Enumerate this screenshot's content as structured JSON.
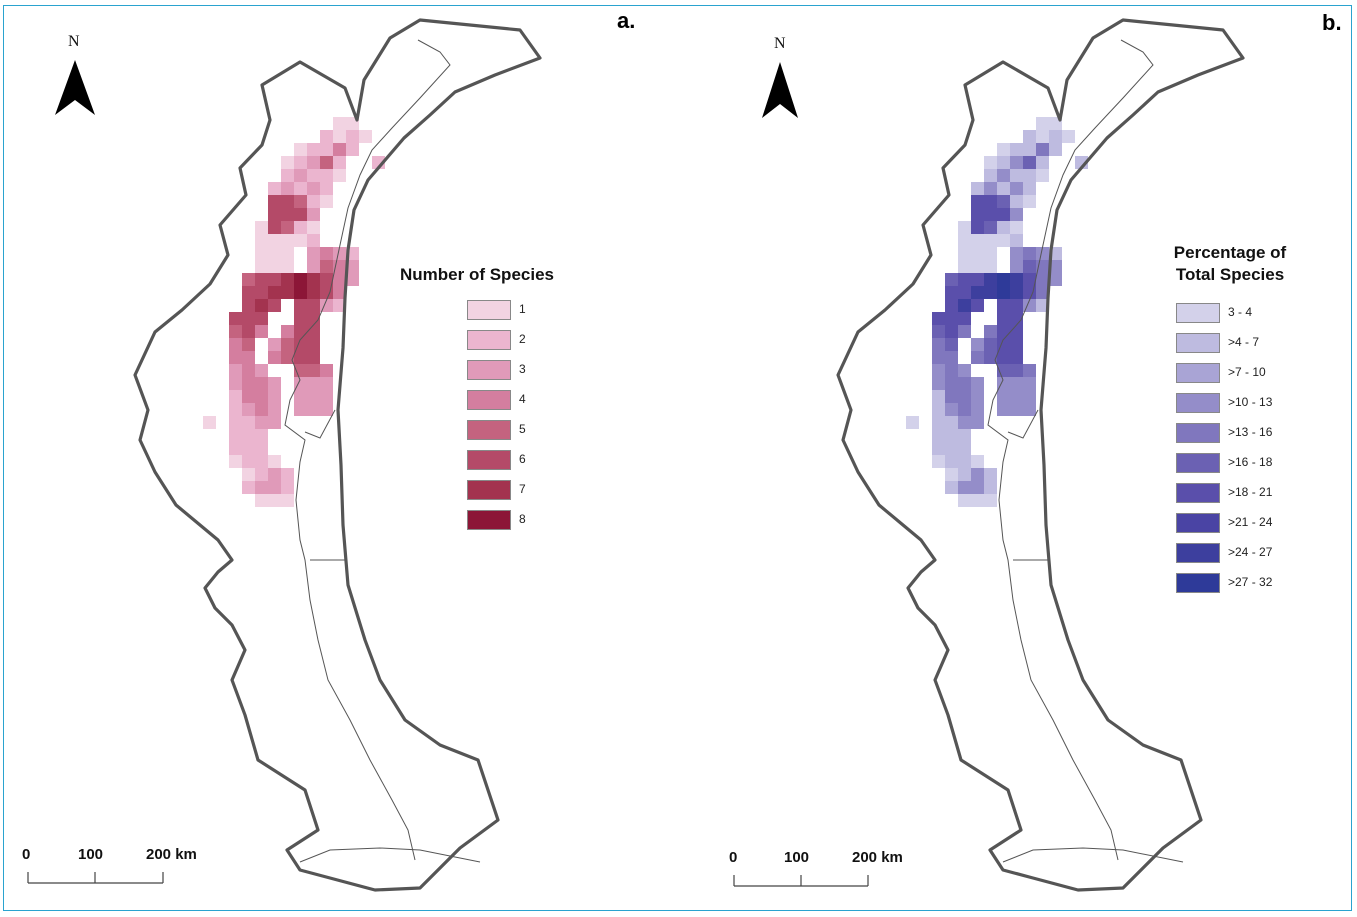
{
  "panels": [
    {
      "label": "a.",
      "legend_title": "Number of Species",
      "north_label": "N",
      "scale": {
        "tick0": "0",
        "tick1": "100",
        "tick2": "200 km"
      },
      "legend": [
        {
          "label": "1",
          "color": "#f2d3e2"
        },
        {
          "label": "2",
          "color": "#ebb5cf"
        },
        {
          "label": "3",
          "color": "#e09ab9"
        },
        {
          "label": "4",
          "color": "#d47e9f"
        },
        {
          "label": "5",
          "color": "#c4637f"
        },
        {
          "label": "6",
          "color": "#b44a68"
        },
        {
          "label": "7",
          "color": "#a3334f"
        },
        {
          "label": "8",
          "color": "#8c1637"
        }
      ]
    },
    {
      "label": "b.",
      "legend_title_line1": "Percentage of",
      "legend_title_line2": "Total Species",
      "north_label": "N",
      "scale": {
        "tick0": "0",
        "tick1": "100",
        "tick2": "200 km"
      },
      "legend": [
        {
          "label": "3 - 4",
          "color": "#d3d1ea"
        },
        {
          "label": ">4 - 7",
          "color": "#bebbe0"
        },
        {
          "label": ">7 - 10",
          "color": "#a9a4d5"
        },
        {
          "label": ">10 - 13",
          "color": "#948dc9"
        },
        {
          "label": ">13 - 16",
          "color": "#8077be"
        },
        {
          "label": ">16 - 18",
          "color": "#6b61b3"
        },
        {
          "label": ">18 - 21",
          "color": "#5a4fab"
        },
        {
          "label": ">21 - 24",
          "color": "#4a44a4"
        },
        {
          "label": ">24 - 27",
          "color": "#3d3f9e"
        },
        {
          "label": ">27 - 32",
          "color": "#2e3a99"
        }
      ]
    }
  ]
}
